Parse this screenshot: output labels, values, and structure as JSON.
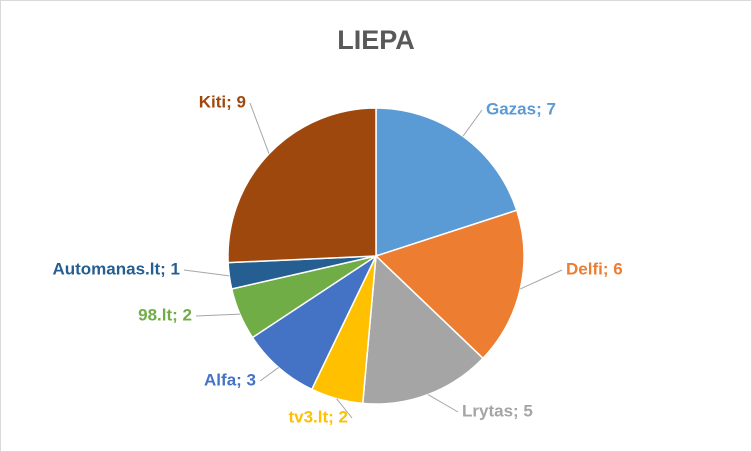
{
  "chart_data": {
    "type": "pie",
    "title": "LIEPA",
    "categories": [
      "Gazas",
      "Delfi",
      "Lrytas",
      "tv3.lt",
      "Alfa",
      "98.lt",
      "Automanas.lt",
      "Kiti"
    ],
    "values": [
      7,
      6,
      5,
      2,
      3,
      2,
      1,
      9
    ],
    "value_labels": [
      "Gazas; 7",
      "Delfi; 6",
      "Lrytas; 5",
      "tv3.lt; 2",
      "Alfa; 3",
      "98.lt; 2",
      "Automanas.lt; 1",
      "Kiti; 9"
    ],
    "colors": [
      "#5b9bd5",
      "#ed7d31",
      "#a5a5a5",
      "#ffc000",
      "#4472c4",
      "#70ad47",
      "#255e91",
      "#9e480e"
    ]
  }
}
